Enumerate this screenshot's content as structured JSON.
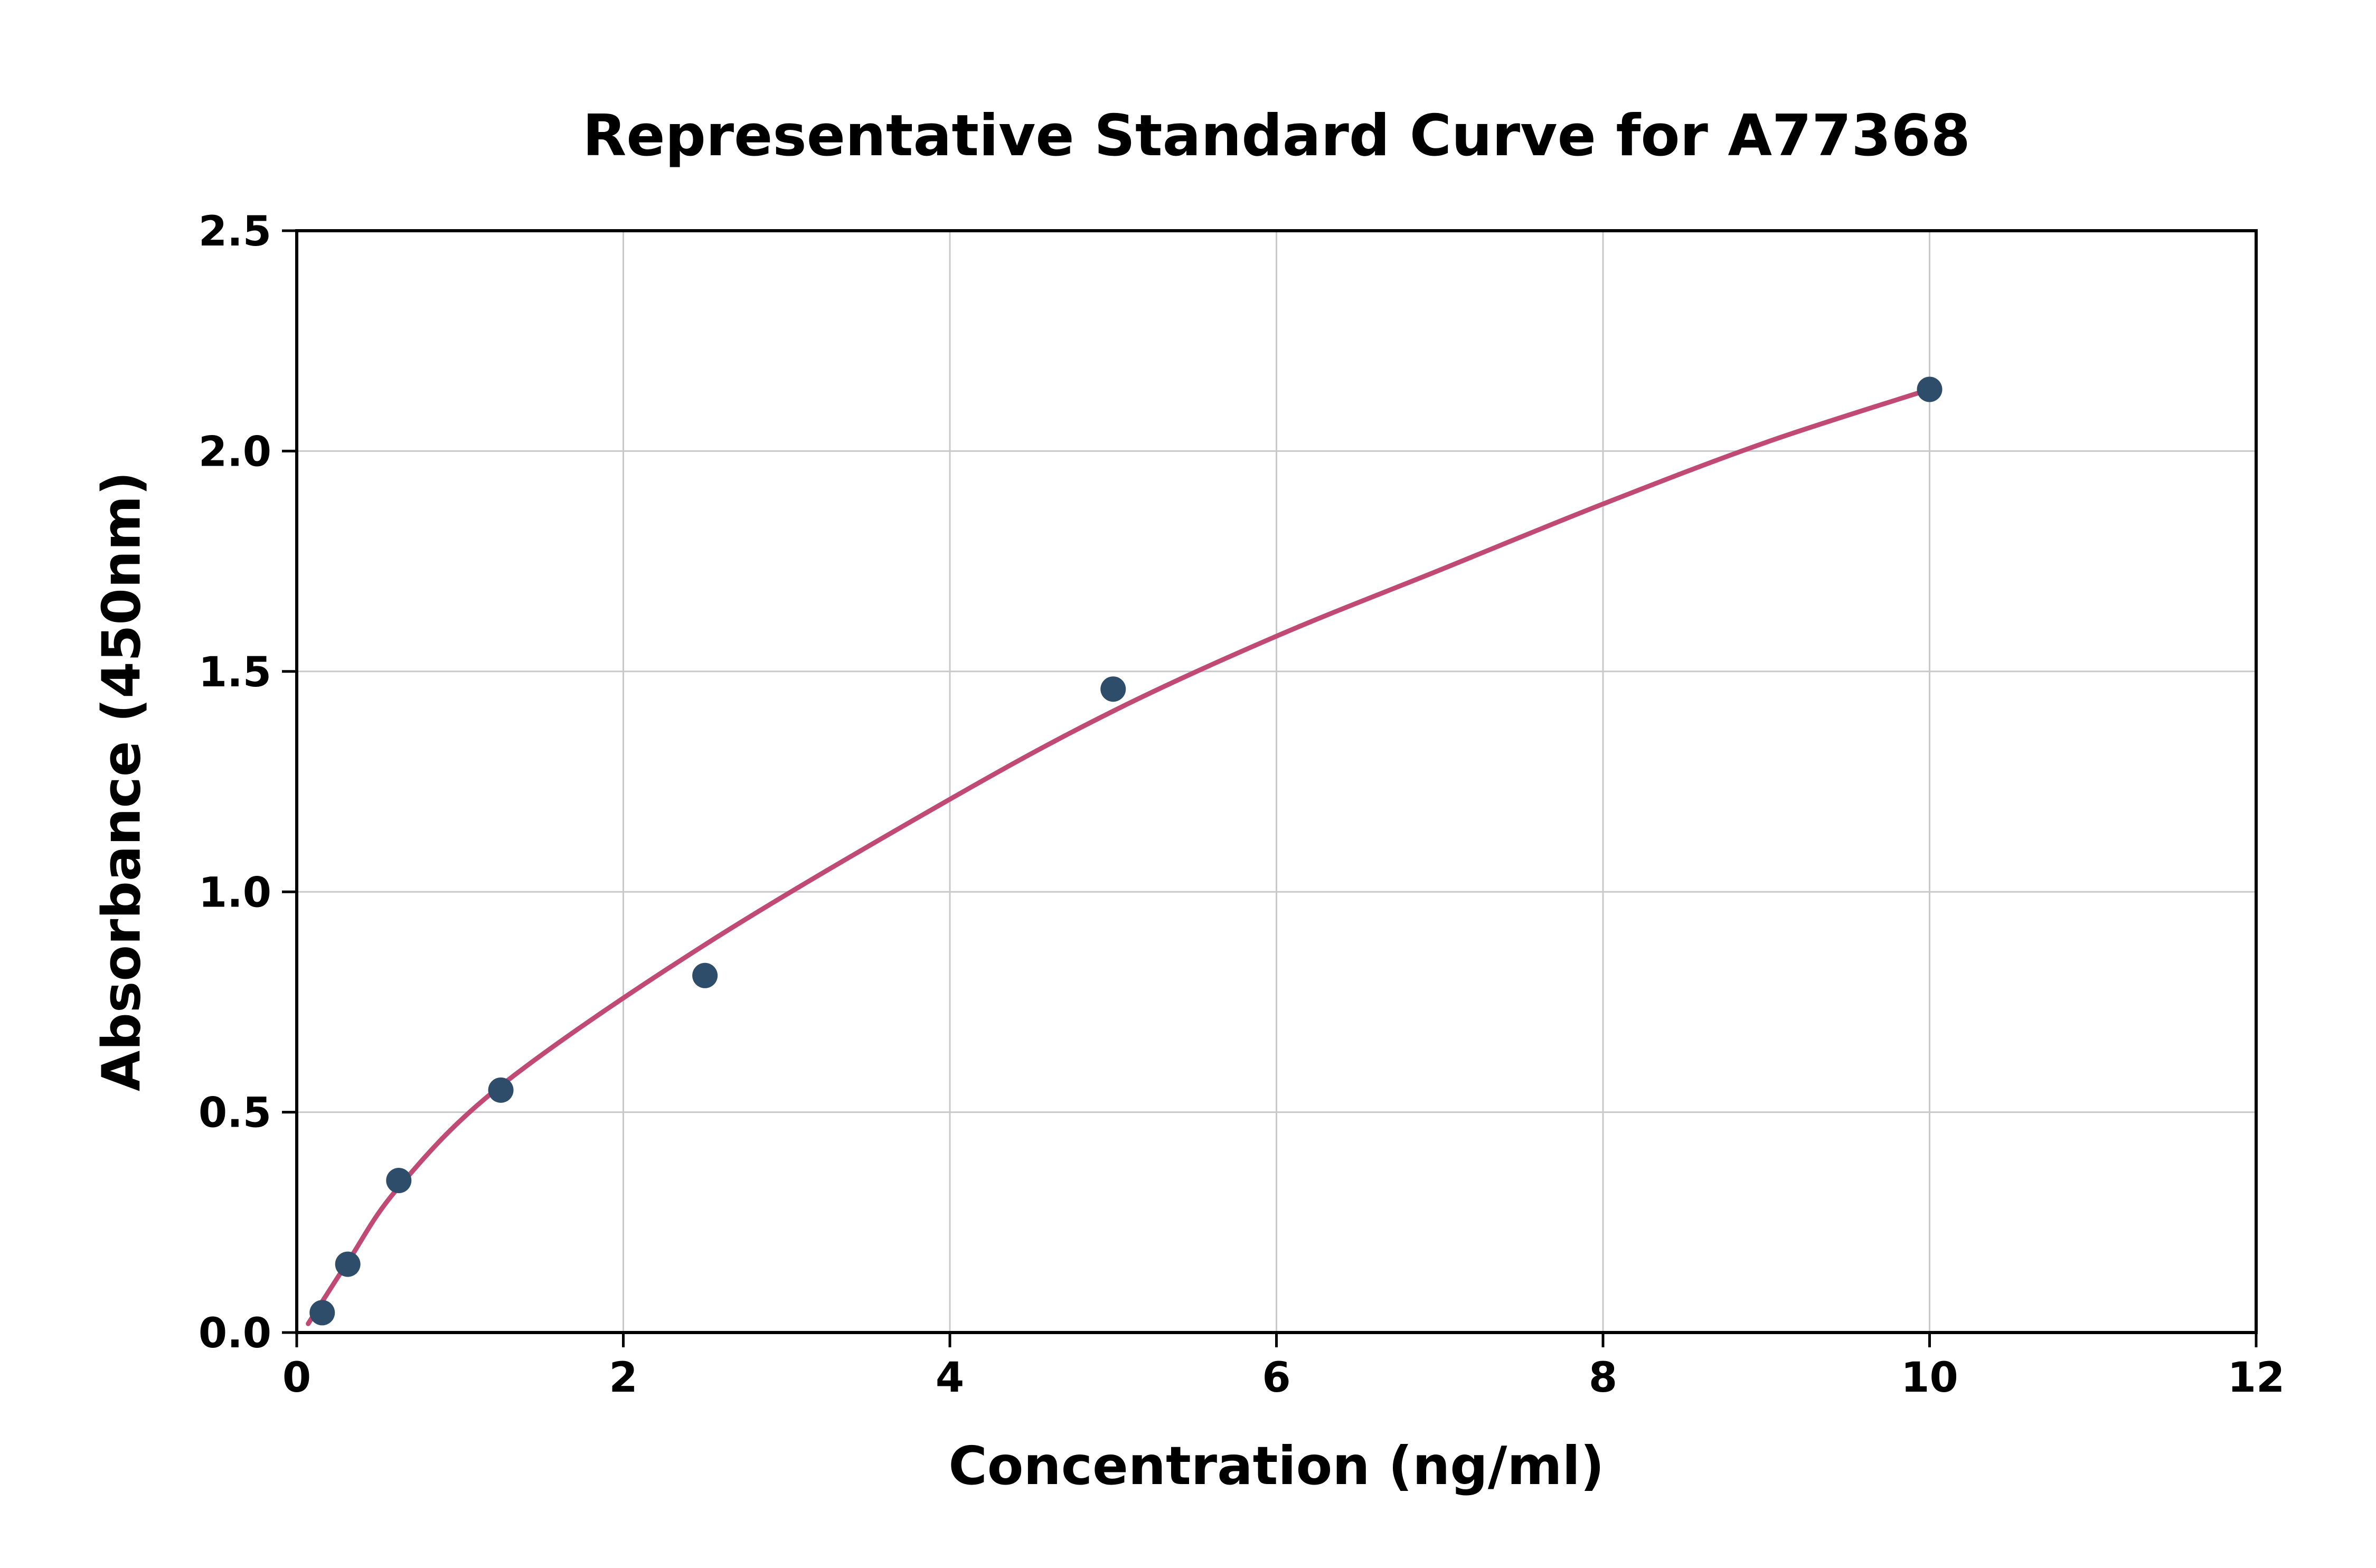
{
  "chart_data": {
    "type": "scatter",
    "title": "Representative Standard Curve for A77368",
    "xlabel": "Concentration (ng/ml)",
    "ylabel": "Absorbance (450nm)",
    "xlim": [
      0,
      12
    ],
    "ylim": [
      0,
      2.5
    ],
    "xticks": [
      0,
      2,
      4,
      6,
      8,
      10,
      12
    ],
    "xtick_labels": [
      "0",
      "2",
      "4",
      "6",
      "8",
      "10",
      "12"
    ],
    "yticks": [
      0,
      0.5,
      1.0,
      1.5,
      2.0,
      2.5
    ],
    "ytick_labels": [
      "0.0",
      "0.5",
      "1.0",
      "1.5",
      "2.0",
      "2.5"
    ],
    "grid": true,
    "legend": "none",
    "series": [
      {
        "name": "standard-points",
        "style": "scatter",
        "x": [
          0.156,
          0.3125,
          0.625,
          1.25,
          2.5,
          5,
          10
        ],
        "y": [
          0.045,
          0.155,
          0.345,
          0.55,
          0.81,
          1.46,
          2.14
        ]
      },
      {
        "name": "fitted-curve",
        "style": "line",
        "x": [
          0.07,
          0.3125,
          0.625,
          1.25,
          2.5,
          4,
          5,
          6,
          7,
          8,
          9,
          10
        ],
        "y": [
          0.02,
          0.16,
          0.33,
          0.56,
          0.88,
          1.21,
          1.41,
          1.58,
          1.73,
          1.88,
          2.02,
          2.14
        ]
      }
    ],
    "colors": {
      "point": "#2e4d6b",
      "curve": "#c04a73",
      "grid": "#c9c9c9",
      "axis": "#000000",
      "background": "#ffffff"
    }
  }
}
